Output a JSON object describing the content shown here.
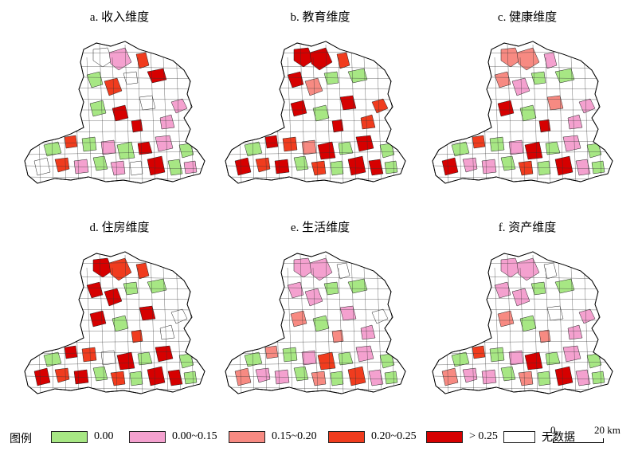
{
  "colors": {
    "c0": "#a7e784",
    "c1": "#f4a1cf",
    "c2": "#f78a82",
    "c3": "#f03c1e",
    "c4": "#d60000",
    "none": "#ffffff"
  },
  "panels": [
    {
      "title": "a. 收入维度",
      "fills": [
        "none",
        "c1",
        "c3",
        "c4",
        "c0",
        "c3",
        "none",
        "c1",
        "c0",
        "c4",
        "none",
        "c4",
        "c1",
        "c0",
        "c3",
        "c0",
        "c1",
        "c0",
        "c4",
        "c1",
        "c0",
        "none",
        "c3",
        "c1",
        "c0",
        "c1",
        "none",
        "c4",
        "c0",
        "c1"
      ]
    },
    {
      "title": "b. 教育维度",
      "fills": [
        "c4",
        "c4",
        "c3",
        "c0",
        "c4",
        "c2",
        "c0",
        "c3",
        "c4",
        "c0",
        "c4",
        "c4",
        "c3",
        "c0",
        "c4",
        "c3",
        "c2",
        "c4",
        "c0",
        "c4",
        "c0",
        "c4",
        "c3",
        "c4",
        "c0",
        "c3",
        "c0",
        "c4",
        "c4",
        "c0"
      ]
    },
    {
      "title": "c. 健康维度",
      "fills": [
        "c2",
        "c2",
        "c1",
        "c0",
        "c2",
        "c1",
        "c0",
        "c1",
        "c4",
        "c0",
        "c2",
        "c4",
        "c1",
        "c0",
        "c3",
        "c0",
        "c1",
        "c4",
        "c0",
        "c1",
        "c0",
        "c4",
        "c1",
        "c1",
        "c0",
        "c3",
        "c0",
        "c4",
        "c1",
        "c0"
      ]
    },
    {
      "title": "d. 住房维度",
      "fills": [
        "c4",
        "c3",
        "c3",
        "c0",
        "c4",
        "c4",
        "c0",
        "none",
        "c4",
        "c0",
        "c4",
        "c3",
        "none",
        "c0",
        "c4",
        "c3",
        "none",
        "c4",
        "c0",
        "c4",
        "c0",
        "c4",
        "c3",
        "c4",
        "c0",
        "c3",
        "c0",
        "c4",
        "c4",
        "c0"
      ]
    },
    {
      "title": "e. 生活维度",
      "fills": [
        "c1",
        "c1",
        "none",
        "c0",
        "c1",
        "c1",
        "c0",
        "none",
        "c2",
        "c0",
        "c1",
        "c2",
        "c1",
        "c0",
        "c2",
        "c0",
        "c1",
        "c3",
        "c0",
        "c1",
        "c0",
        "c2",
        "c1",
        "c1",
        "c0",
        "c2",
        "c0",
        "c3",
        "c1",
        "c0"
      ]
    },
    {
      "title": "f. 资产维度",
      "fills": [
        "c1",
        "c1",
        "none",
        "c0",
        "c1",
        "c1",
        "c0",
        "c1",
        "c2",
        "c0",
        "none",
        "c2",
        "c1",
        "c0",
        "c3",
        "c0",
        "c1",
        "c4",
        "c0",
        "c1",
        "c0",
        "c2",
        "c1",
        "c1",
        "c0",
        "c2",
        "c0",
        "c4",
        "c1",
        "c0"
      ]
    }
  ],
  "legend": {
    "title": "图例",
    "items": [
      {
        "label": "0.00",
        "color_key": "c0"
      },
      {
        "label": "0.00~0.15",
        "color_key": "c1"
      },
      {
        "label": "0.15~0.20",
        "color_key": "c2"
      },
      {
        "label": "0.20~0.25",
        "color_key": "c3"
      },
      {
        "label": "> 0.25",
        "color_key": "c4"
      },
      {
        "label": "无数据",
        "color_key": "none"
      }
    ]
  },
  "scale_bar": {
    "start": "0",
    "end": "20 km"
  }
}
